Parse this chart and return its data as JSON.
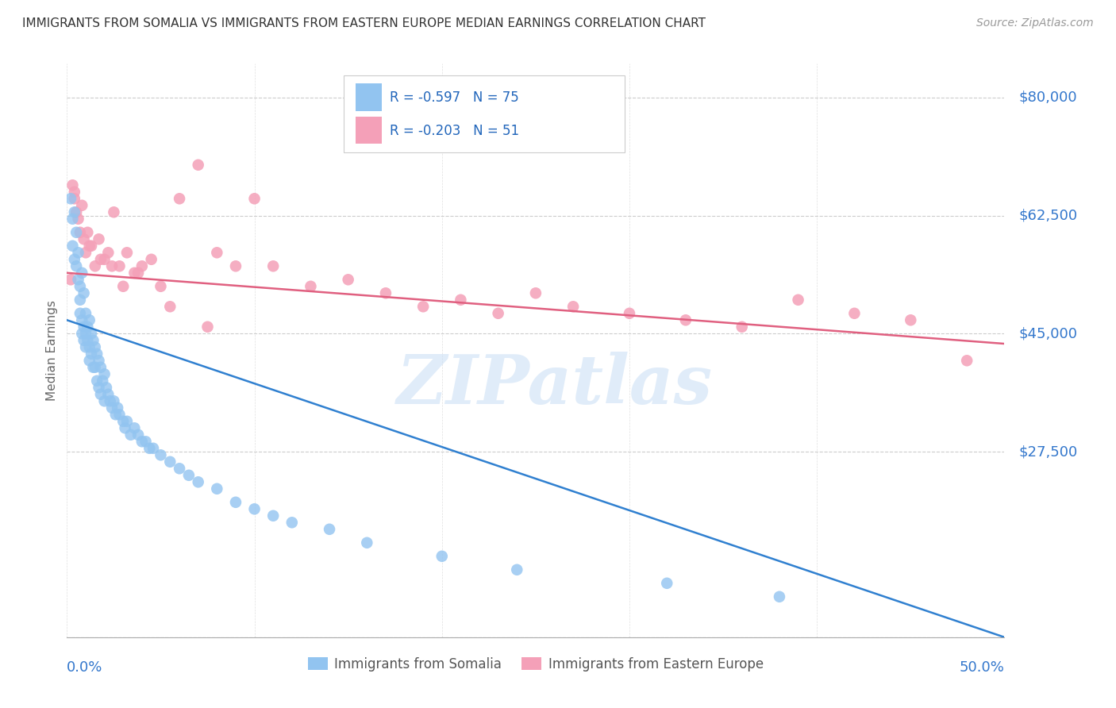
{
  "title": "IMMIGRANTS FROM SOMALIA VS IMMIGRANTS FROM EASTERN EUROPE MEDIAN EARNINGS CORRELATION CHART",
  "source": "Source: ZipAtlas.com",
  "ylabel_label": "Median Earnings",
  "x_min": 0.0,
  "x_max": 0.5,
  "y_min": 0,
  "y_max": 85000,
  "yticks": [
    0,
    27500,
    45000,
    62500,
    80000
  ],
  "ytick_labels": [
    "",
    "$27,500",
    "$45,000",
    "$62,500",
    "$80,000"
  ],
  "watermark": "ZIPatlas",
  "somalia_color": "#92c4f0",
  "eastern_color": "#f4a0b8",
  "somalia_line_color": "#3080d0",
  "eastern_line_color": "#e06080",
  "somalia_R": -0.597,
  "somalia_N": 75,
  "eastern_R": -0.203,
  "eastern_N": 51,
  "somalia_line_x0": 0.0,
  "somalia_line_y0": 47000,
  "somalia_line_x1": 0.5,
  "somalia_line_y1": 0,
  "eastern_line_x0": 0.0,
  "eastern_line_y0": 54000,
  "eastern_line_x1": 0.5,
  "eastern_line_y1": 43500,
  "somalia_x": [
    0.002,
    0.003,
    0.003,
    0.004,
    0.004,
    0.005,
    0.005,
    0.006,
    0.006,
    0.007,
    0.007,
    0.007,
    0.008,
    0.008,
    0.008,
    0.009,
    0.009,
    0.009,
    0.01,
    0.01,
    0.01,
    0.011,
    0.011,
    0.012,
    0.012,
    0.012,
    0.013,
    0.013,
    0.014,
    0.014,
    0.015,
    0.015,
    0.016,
    0.016,
    0.017,
    0.017,
    0.018,
    0.018,
    0.019,
    0.02,
    0.02,
    0.021,
    0.022,
    0.023,
    0.024,
    0.025,
    0.026,
    0.027,
    0.028,
    0.03,
    0.031,
    0.032,
    0.034,
    0.036,
    0.038,
    0.04,
    0.042,
    0.044,
    0.046,
    0.05,
    0.055,
    0.06,
    0.065,
    0.07,
    0.08,
    0.09,
    0.1,
    0.11,
    0.12,
    0.14,
    0.16,
    0.2,
    0.24,
    0.32,
    0.38
  ],
  "somalia_y": [
    65000,
    62000,
    58000,
    63000,
    56000,
    55000,
    60000,
    53000,
    57000,
    50000,
    52000,
    48000,
    54000,
    47000,
    45000,
    51000,
    46000,
    44000,
    48000,
    45000,
    43000,
    46000,
    44000,
    47000,
    43000,
    41000,
    45000,
    42000,
    44000,
    40000,
    43000,
    40000,
    42000,
    38000,
    41000,
    37000,
    40000,
    36000,
    38000,
    39000,
    35000,
    37000,
    36000,
    35000,
    34000,
    35000,
    33000,
    34000,
    33000,
    32000,
    31000,
    32000,
    30000,
    31000,
    30000,
    29000,
    29000,
    28000,
    28000,
    27000,
    26000,
    25000,
    24000,
    23000,
    22000,
    20000,
    19000,
    18000,
    17000,
    16000,
    14000,
    12000,
    10000,
    8000,
    6000
  ],
  "eastern_x": [
    0.002,
    0.003,
    0.004,
    0.005,
    0.006,
    0.007,
    0.008,
    0.009,
    0.01,
    0.011,
    0.013,
    0.015,
    0.017,
    0.02,
    0.022,
    0.025,
    0.028,
    0.032,
    0.036,
    0.04,
    0.045,
    0.05,
    0.06,
    0.07,
    0.08,
    0.09,
    0.1,
    0.11,
    0.13,
    0.15,
    0.17,
    0.19,
    0.21,
    0.23,
    0.25,
    0.27,
    0.3,
    0.33,
    0.36,
    0.39,
    0.42,
    0.45,
    0.48,
    0.004,
    0.012,
    0.018,
    0.024,
    0.03,
    0.038,
    0.055,
    0.075
  ],
  "eastern_y": [
    53000,
    67000,
    65000,
    63000,
    62000,
    60000,
    64000,
    59000,
    57000,
    60000,
    58000,
    55000,
    59000,
    56000,
    57000,
    63000,
    55000,
    57000,
    54000,
    55000,
    56000,
    52000,
    65000,
    70000,
    57000,
    55000,
    65000,
    55000,
    52000,
    53000,
    51000,
    49000,
    50000,
    48000,
    51000,
    49000,
    48000,
    47000,
    46000,
    50000,
    48000,
    47000,
    41000,
    66000,
    58000,
    56000,
    55000,
    52000,
    54000,
    49000,
    46000
  ]
}
